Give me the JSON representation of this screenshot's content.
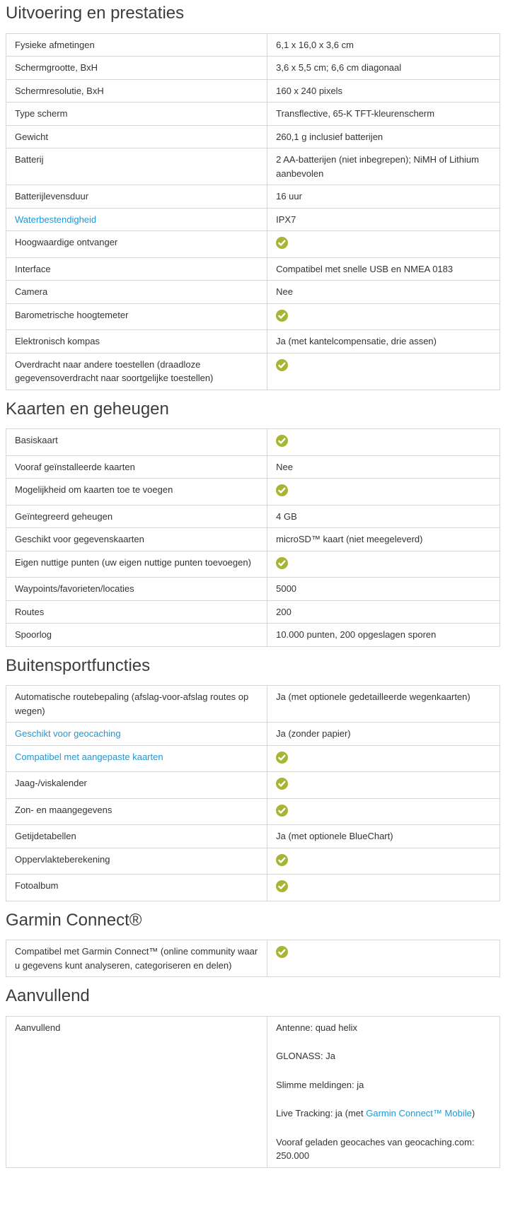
{
  "colors": {
    "text": "#333333",
    "heading": "#3d3d3d",
    "border": "#d7d7d7",
    "link": "#1f97d4",
    "check_green": "#a7b434"
  },
  "icons": {
    "check": "check-icon"
  },
  "sections": [
    {
      "title": "Uitvoering en prestaties",
      "rows": [
        {
          "label": "Fysieke afmetingen",
          "value": "6,1 x 16,0 x 3,6 cm"
        },
        {
          "label": "Schermgrootte, BxH",
          "value": "3,6 x 5,5 cm; 6,6 cm diagonaal"
        },
        {
          "label": "Schermresolutie, BxH",
          "value": "160 x 240 pixels"
        },
        {
          "label": "Type scherm",
          "value": "Transflective, 65-K TFT-kleurenscherm"
        },
        {
          "label": "Gewicht",
          "value": "260,1 g inclusief batterijen"
        },
        {
          "label": "Batterij",
          "value": "2 AA-batterijen (niet inbegrepen); NiMH of Lithium aanbevolen"
        },
        {
          "label": "Batterijlevensduur",
          "value": "16 uur"
        },
        {
          "label": "Waterbestendigheid",
          "label_is_link": true,
          "value": "IPX7"
        },
        {
          "label": "Hoogwaardige ontvanger",
          "value_check": true
        },
        {
          "label": "Interface",
          "value": "Compatibel met snelle USB en NMEA 0183"
        },
        {
          "label": "Camera",
          "value": "Nee"
        },
        {
          "label": "Barometrische hoogtemeter",
          "value_check": true
        },
        {
          "label": "Elektronisch kompas",
          "value": "Ja (met kantelcompensatie, drie assen)"
        },
        {
          "label": "Overdracht naar andere toestellen (draadloze gegevensoverdracht naar soortgelijke toestellen)",
          "value_check": true
        }
      ]
    },
    {
      "title": "Kaarten en geheugen",
      "rows": [
        {
          "label": "Basiskaart",
          "value_check": true
        },
        {
          "label": "Vooraf geïnstalleerde kaarten",
          "value": "Nee"
        },
        {
          "label": "Mogelijkheid om kaarten toe te voegen",
          "value_check": true
        },
        {
          "label": "Geïntegreerd geheugen",
          "value": "4 GB"
        },
        {
          "label": "Geschikt voor gegevenskaarten",
          "value": "microSD™ kaart (niet meegeleverd)"
        },
        {
          "label": "Eigen nuttige punten (uw eigen nuttige punten toevoegen)",
          "value_check": true
        },
        {
          "label": "Waypoints/favorieten/locaties",
          "value": "5000"
        },
        {
          "label": "Routes",
          "value": "200"
        },
        {
          "label": "Spoorlog",
          "value": "10.000 punten, 200 opgeslagen sporen"
        }
      ]
    },
    {
      "title": "Buitensportfuncties",
      "rows": [
        {
          "label": "Automatische routebepaling (afslag-voor-afslag routes op wegen)",
          "value": "Ja (met optionele gedetailleerde wegenkaarten)"
        },
        {
          "label": "Geschikt voor geocaching",
          "label_is_link": true,
          "value": "Ja (zonder papier)"
        },
        {
          "label": "Compatibel met aangepaste kaarten",
          "label_is_link": true,
          "value_check": true
        },
        {
          "label": "Jaag-/viskalender",
          "value_check": true
        },
        {
          "label": "Zon- en maangegevens",
          "value_check": true
        },
        {
          "label": "Getijdetabellen",
          "value": "Ja (met optionele BlueChart)"
        },
        {
          "label": "Oppervlakteberekening",
          "value_check": true
        },
        {
          "label": "Fotoalbum",
          "value_check": true
        }
      ]
    },
    {
      "title": "Garmin Connect®",
      "rows": [
        {
          "label": "Compatibel met Garmin Connect™ (online community waar u gegevens kunt analyseren, categoriseren en delen)",
          "value_check": true
        }
      ]
    },
    {
      "title": "Aanvullend",
      "rows": [
        {
          "label": "Aanvullend",
          "value_paragraphs": [
            [
              {
                "text": "Antenne: quad helix"
              }
            ],
            [
              {
                "text": "GLONASS: Ja"
              }
            ],
            [
              {
                "text": "Slimme meldingen: ja"
              }
            ],
            [
              {
                "text": "Live Tracking: ja (met "
              },
              {
                "text": "Garmin Connect™ Mobile",
                "link": true
              },
              {
                "text": ")"
              }
            ],
            [
              {
                "text": "Vooraf geladen geocaches van geocaching.com: 250.000"
              }
            ]
          ]
        }
      ]
    }
  ]
}
